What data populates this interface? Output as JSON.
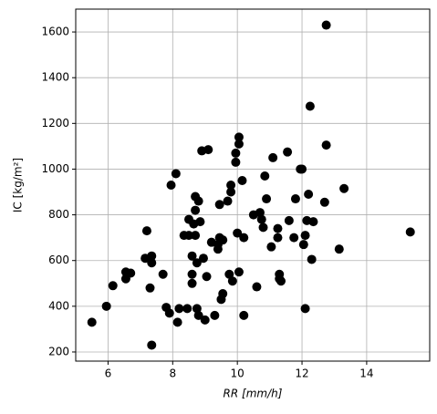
{
  "chart_data": {
    "type": "scatter",
    "xlabel": "RR [mm/h]",
    "ylabel": "IC [kg/m²]",
    "x": [
      5.5,
      5.95,
      6.15,
      6.55,
      6.55,
      6.7,
      7.15,
      7.2,
      7.3,
      7.35,
      7.35,
      7.35,
      7.7,
      7.8,
      7.9,
      7.95,
      8.1,
      8.15,
      8.2,
      8.35,
      8.45,
      8.5,
      8.5,
      8.6,
      8.6,
      8.6,
      8.65,
      8.7,
      8.7,
      8.7,
      8.75,
      8.75,
      8.8,
      8.8,
      8.85,
      8.9,
      8.95,
      9.0,
      9.05,
      9.1,
      9.2,
      9.3,
      9.4,
      9.4,
      9.45,
      9.45,
      9.5,
      9.55,
      9.55,
      9.7,
      9.75,
      9.8,
      9.8,
      9.85,
      9.95,
      9.95,
      10.0,
      10.05,
      10.05,
      10.05,
      10.15,
      10.2,
      10.2,
      10.5,
      10.6,
      10.7,
      10.75,
      10.8,
      10.85,
      10.9,
      11.05,
      11.1,
      11.25,
      11.25,
      11.3,
      11.3,
      11.35,
      11.55,
      11.6,
      11.75,
      11.8,
      11.95,
      12.0,
      12.05,
      12.1,
      12.1,
      12.15,
      12.2,
      12.25,
      12.3,
      12.35,
      12.7,
      12.75,
      12.75,
      13.15,
      13.3,
      15.35
    ],
    "values": [
      330,
      400,
      490,
      550,
      520,
      545,
      610,
      730,
      480,
      620,
      590,
      230,
      540,
      395,
      370,
      930,
      980,
      330,
      390,
      710,
      390,
      710,
      780,
      540,
      620,
      500,
      760,
      710,
      820,
      880,
      590,
      390,
      360,
      860,
      770,
      1080,
      610,
      340,
      530,
      1085,
      680,
      360,
      650,
      670,
      700,
      845,
      430,
      690,
      455,
      860,
      540,
      930,
      900,
      510,
      1070,
      1030,
      720,
      1140,
      1110,
      550,
      950,
      700,
      360,
      800,
      485,
      810,
      780,
      745,
      970,
      870,
      660,
      1050,
      740,
      700,
      520,
      540,
      510,
      1075,
      775,
      700,
      870,
      1000,
      1000,
      670,
      710,
      390,
      775,
      890,
      1275,
      605,
      770,
      855,
      1105,
      1630,
      650,
      915,
      725
    ],
    "color": "#000000",
    "xlim": [
      5,
      15.95
    ],
    "ylim": [
      160,
      1700
    ],
    "xticks": [
      6,
      8,
      10,
      12,
      14
    ],
    "yticks": [
      200,
      400,
      600,
      800,
      1000,
      1200,
      1400,
      1600
    ],
    "grid": true
  }
}
